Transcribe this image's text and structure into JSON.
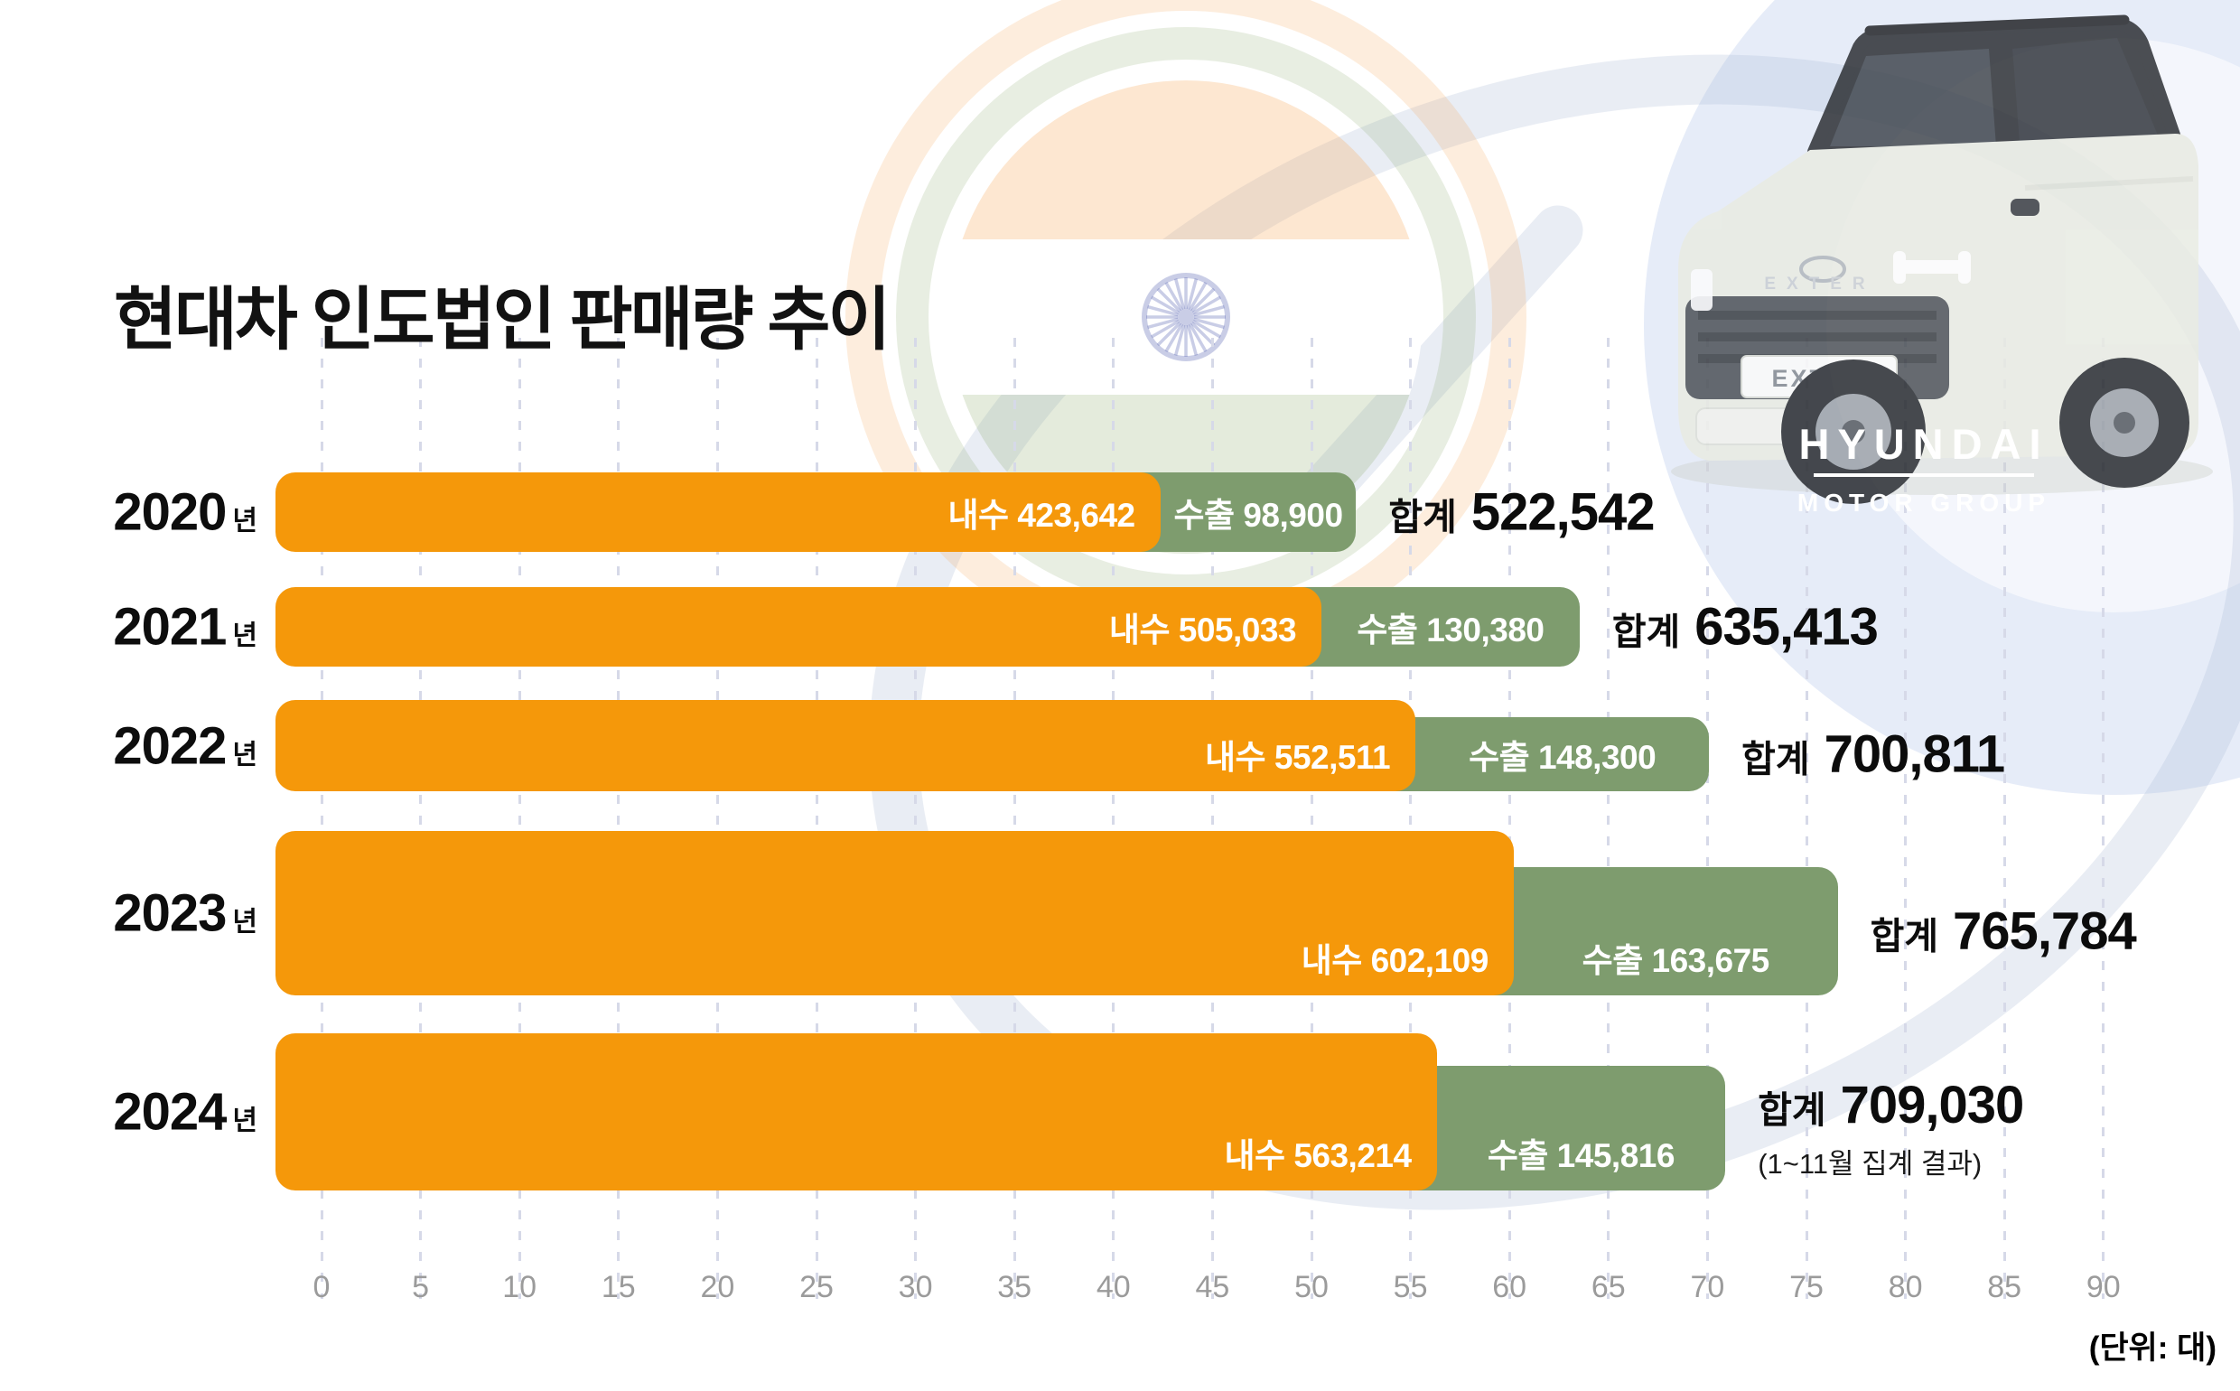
{
  "title": "현대차 인도법인 판매량 추이",
  "unit_note": "(단위: 대)",
  "colors": {
    "domestic_bar": "#F5980A",
    "export_bar": "#7E9C6E",
    "title_text": "#121212",
    "axis_text": "#9B9B9B",
    "gridline": "#D6D9E8"
  },
  "chart_data": {
    "type": "bar",
    "orientation": "horizontal-stacked",
    "title": "현대차 인도법인 판매량 추이",
    "unit": "대",
    "axis_value_scale": 10000,
    "x_ticks": [
      0,
      5,
      10,
      15,
      20,
      25,
      30,
      35,
      40,
      45,
      50,
      55,
      60,
      65,
      70,
      75,
      80,
      85,
      90
    ],
    "grid": "dashed-vertical",
    "categories": [
      "2020년",
      "2021년",
      "2022년",
      "2023년",
      "2024년"
    ],
    "series": [
      {
        "name": "내수",
        "values": [
          423642,
          505033,
          552511,
          602109,
          563214
        ]
      },
      {
        "name": "수출",
        "values": [
          98900,
          130380,
          148300,
          163675,
          145816
        ]
      }
    ],
    "totals": [
      522542,
      635413,
      700811,
      765784,
      709030
    ],
    "rows": [
      {
        "year": "2020",
        "year_suffix": "년",
        "domestic_label": "내수 423,642",
        "export_label": "수출 98,900",
        "total_prefix": "합계",
        "total_value": "522,542",
        "note": ""
      },
      {
        "year": "2021",
        "year_suffix": "년",
        "domestic_label": "내수 505,033",
        "export_label": "수출 130,380",
        "total_prefix": "합계",
        "total_value": "635,413",
        "note": ""
      },
      {
        "year": "2022",
        "year_suffix": "년",
        "domestic_label": "내수 552,511",
        "export_label": "수출 148,300",
        "total_prefix": "합계",
        "total_value": "700,811",
        "note": ""
      },
      {
        "year": "2023",
        "year_suffix": "년",
        "domestic_label": "내수 602,109",
        "export_label": "수출 163,675",
        "total_prefix": "합계",
        "total_value": "765,784",
        "note": ""
      },
      {
        "year": "2024",
        "year_suffix": "년",
        "domestic_label": "내수 563,214",
        "export_label": "수출 145,816",
        "total_prefix": "합계",
        "total_value": "709,030",
        "note": "(1~11월 집계 결과)"
      }
    ]
  },
  "watermark": {
    "car_plate": "EXTER",
    "car_hood_badge": "EXTER",
    "brand_line1": "HYUNDAI",
    "brand_line2": "MOTOR GROUP"
  }
}
